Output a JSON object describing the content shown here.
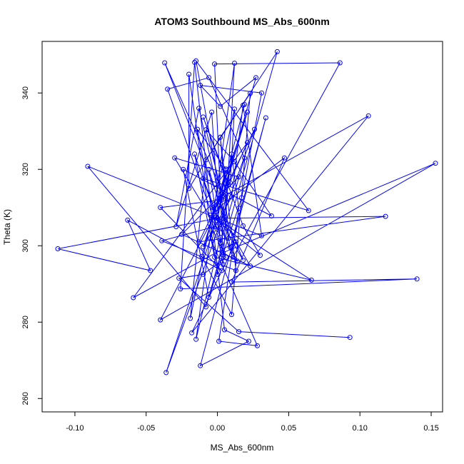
{
  "chart_data": {
    "type": "line",
    "title": "ATOM3 Southbound MS_Abs_600nm",
    "xlabel": "MS_Abs_600nm",
    "ylabel": "Theta (K)",
    "xlim": [
      -0.123,
      0.158
    ],
    "ylim": [
      256.5,
      353.5
    ],
    "x_ticks": [
      -0.1,
      -0.05,
      0.0,
      0.05,
      0.1,
      0.15
    ],
    "x_tick_labels": [
      "-0.10",
      "-0.05",
      "0.00",
      "0.05",
      "0.10",
      "0.15"
    ],
    "y_ticks": [
      260,
      280,
      300,
      320,
      340
    ],
    "y_tick_labels": [
      "260",
      "280",
      "300",
      "320",
      "340"
    ],
    "markers": "open-circle",
    "grid": false,
    "colors": {
      "series": "#0000ff",
      "axes": "#000000"
    },
    "series": [
      {
        "points": [
          [
            0.093,
            276.0
          ],
          [
            0.015,
            277.5
          ],
          [
            -0.027,
            291.5
          ],
          [
            -0.01,
            292.5
          ],
          [
            0.006,
            297.0
          ],
          [
            -0.003,
            304.0
          ],
          [
            -0.036,
            266.8
          ],
          [
            0.026,
            330.5
          ],
          [
            -0.013,
            301.0
          ],
          [
            0.118,
            307.7
          ],
          [
            0.0,
            307.2
          ],
          [
            -0.112,
            299.2
          ],
          [
            -0.047,
            293.5
          ],
          [
            -0.063,
            306.7
          ],
          [
            0.003,
            293.5
          ],
          [
            -0.04,
            310.0
          ],
          [
            0.003,
            312.0
          ],
          [
            0.021,
            335.0
          ],
          [
            -0.01,
            299.7
          ],
          [
            0.01,
            312.8
          ],
          [
            0.018,
            336.8
          ],
          [
            0.031,
            302.6
          ],
          [
            -0.091,
            320.8
          ],
          [
            -0.008,
            284.0
          ],
          [
            0.042,
            350.8
          ],
          [
            -0.008,
            322.5
          ],
          [
            -0.019,
            281.0
          ],
          [
            0.012,
            335.8
          ],
          [
            0.009,
            316.5
          ],
          [
            -0.003,
            310.0
          ],
          [
            0.018,
            296.2
          ],
          [
            -0.037,
            347.9
          ],
          [
            0.005,
            313.0
          ],
          [
            -0.04,
            280.6
          ],
          [
            0.153,
            321.6
          ],
          [
            0.004,
            298.2
          ],
          [
            0.014,
            296.0
          ],
          [
            0.002,
            304.5
          ],
          [
            0.006,
            313.3
          ],
          [
            0.106,
            334.0
          ],
          [
            -0.018,
            277.2
          ],
          [
            0.013,
            301.0
          ],
          [
            -0.059,
            286.4
          ],
          [
            0.021,
            327.0
          ],
          [
            0.008,
            316.0
          ],
          [
            -0.01,
            333.7
          ],
          [
            0.018,
            305.2
          ],
          [
            0.03,
            297.5
          ],
          [
            -0.005,
            308.0
          ],
          [
            0.066,
            291.0
          ],
          [
            -0.002,
            297.0
          ],
          [
            -0.016,
            324.0
          ],
          [
            0.0,
            306.5
          ],
          [
            0.006,
            320.1
          ],
          [
            -0.014,
            330.5
          ],
          [
            0.004,
            295.1
          ],
          [
            0.012,
            347.8
          ],
          [
            -0.015,
            275.5
          ],
          [
            0.002,
            302.2
          ],
          [
            -0.035,
            341.0
          ],
          [
            -0.006,
            344.0
          ],
          [
            0.019,
            323.0
          ],
          [
            0.002,
            300.7
          ],
          [
            -0.004,
            335.0
          ],
          [
            -0.029,
            305.0
          ],
          [
            -0.013,
            336.0
          ],
          [
            0.008,
            302.0
          ],
          [
            0.002,
            328.4
          ],
          [
            0.023,
            339.9
          ],
          [
            0.01,
            282.0
          ],
          [
            -0.011,
            297.2
          ],
          [
            0.006,
            319.8
          ],
          [
            0.0,
            309.8
          ],
          [
            0.047,
            323.0
          ],
          [
            0.01,
            290.5
          ],
          [
            0.14,
            291.3
          ],
          [
            -0.026,
            288.7
          ],
          [
            -0.016,
            348.0
          ],
          [
            0.005,
            278.0
          ],
          [
            0.022,
            275.0
          ],
          [
            -0.012,
            268.6
          ],
          [
            0.034,
            333.5
          ],
          [
            0.009,
            299.6
          ],
          [
            -0.015,
            348.4
          ],
          [
            0.064,
            309.2
          ],
          [
            -0.01,
            317.6
          ],
          [
            0.011,
            297.0
          ],
          [
            0.086,
            347.9
          ],
          [
            -0.002,
            347.6
          ],
          [
            0.004,
            297.6
          ],
          [
            -0.006,
            320.0
          ],
          [
            0.005,
            306.5
          ],
          [
            0.023,
            294.7
          ],
          [
            -0.025,
            303.0
          ],
          [
            0.015,
            318.0
          ],
          [
            -0.03,
            323.0
          ],
          [
            -0.001,
            305.1
          ],
          [
            -0.039,
            301.3
          ],
          [
            0.013,
            293.5
          ],
          [
            0.002,
            328.4
          ],
          [
            -0.02,
            315.0
          ],
          [
            -0.02,
            344.9
          ],
          [
            0.0,
            292.5
          ],
          [
            0.01,
            324.0
          ],
          [
            0.015,
            309.8
          ],
          [
            0.001,
            275.0
          ],
          [
            0.028,
            273.8
          ],
          [
            -0.005,
            302.0
          ],
          [
            0.027,
            344.0
          ],
          [
            0.002,
            336.5
          ],
          [
            -0.012,
            342.0
          ],
          [
            0.031,
            340.0
          ],
          [
            0.017,
            312.6
          ],
          [
            -0.006,
            286.5
          ],
          [
            -0.024,
            320.0
          ],
          [
            0.038,
            307.8
          ],
          [
            0.012,
            322.0
          ],
          [
            -0.008,
            330.4
          ],
          [
            0.003,
            314.0
          ],
          [
            0.019,
            337.0
          ]
        ]
      }
    ]
  }
}
